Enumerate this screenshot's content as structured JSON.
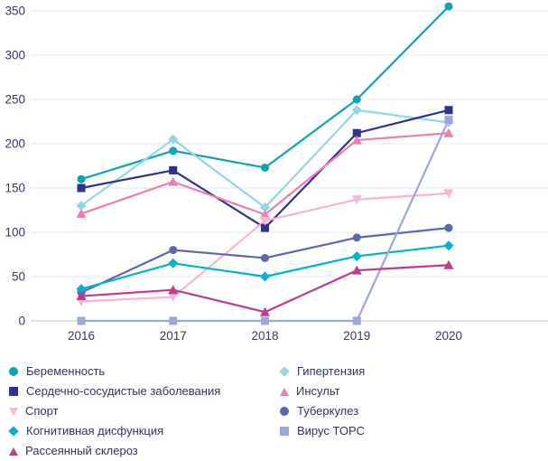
{
  "chart_data": {
    "type": "line",
    "x_labels": [
      "2016",
      "2017",
      "2018",
      "2019",
      "2020"
    ],
    "series": [
      {
        "name": "Беременность",
        "color": "#0ea3b4",
        "marker": "circle",
        "values": [
          160,
          192,
          173,
          250,
          355
        ]
      },
      {
        "name": "Гипертензия",
        "color": "#96d6e2",
        "marker": "diamond",
        "values": [
          130,
          205,
          128,
          238,
          224
        ]
      },
      {
        "name": "Сердечно-сосудистые заболевания",
        "color": "#2d3190",
        "marker": "square",
        "values": [
          150,
          170,
          105,
          212,
          238
        ]
      },
      {
        "name": "Инсульт",
        "color": "#ec7cb1",
        "marker": "triangle-up",
        "values": [
          121,
          157,
          120,
          204,
          212
        ]
      },
      {
        "name": "Спорт",
        "color": "#f6b6d6",
        "marker": "triangle-down",
        "values": [
          22,
          27,
          113,
          137,
          144
        ]
      },
      {
        "name": "Туберкулез",
        "color": "#5d66ad",
        "marker": "circle",
        "values": [
          32,
          80,
          71,
          94,
          105
        ]
      },
      {
        "name": "Когнитивная дисфункция",
        "color": "#00b4ce",
        "marker": "diamond",
        "values": [
          36,
          65,
          50,
          73,
          85
        ]
      },
      {
        "name": "Вирус ТОРС",
        "color": "#9ca7da",
        "marker": "square",
        "values": [
          0,
          0,
          0,
          0,
          227
        ]
      },
      {
        "name": "Рассеянный склероз",
        "color": "#c13d8c",
        "marker": "triangle-up",
        "values": [
          28,
          35,
          10,
          57,
          63
        ]
      }
    ],
    "yticks": [
      0,
      50,
      100,
      150,
      200,
      250,
      300,
      350
    ],
    "ylim": [
      0,
      350
    ],
    "grid": true,
    "legend_position": "bottom",
    "legend_columns": 2
  },
  "colors": {
    "axis_text": "#343a63",
    "legend_text": "#31355a",
    "gridline": "#e7e7e7",
    "zero_line": "#cbd8e6",
    "background": "#ffffff"
  }
}
